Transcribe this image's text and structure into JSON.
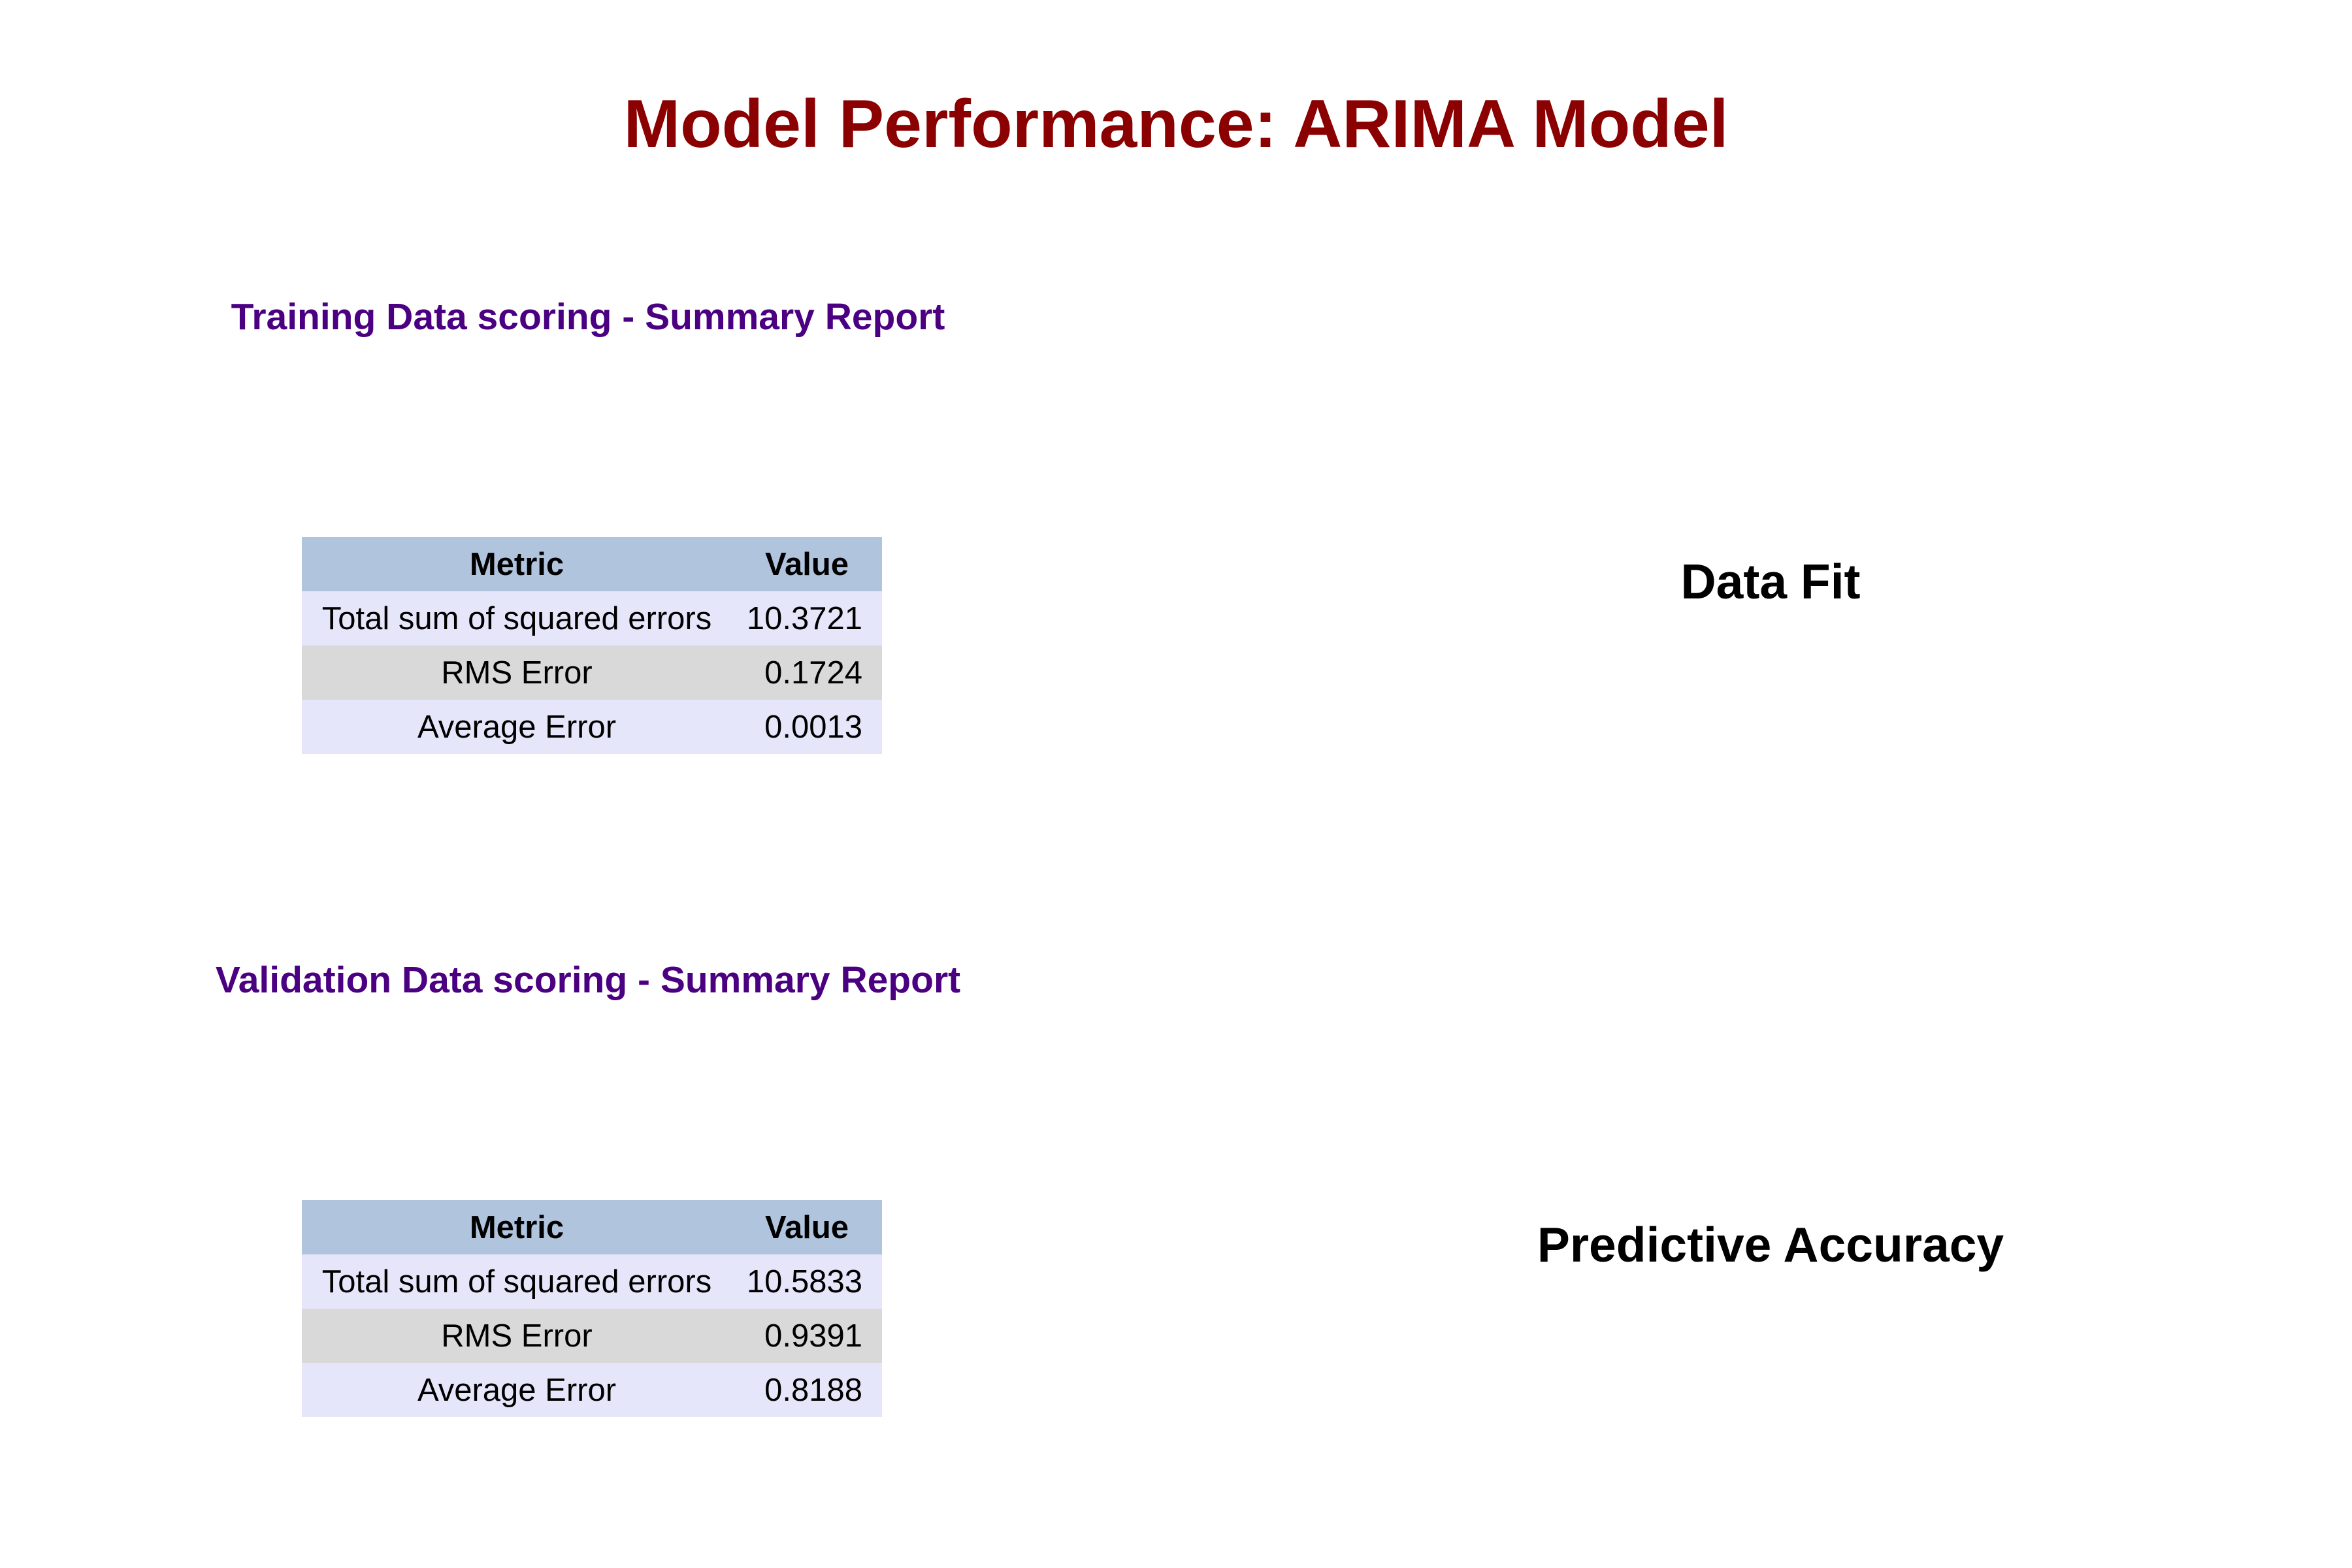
{
  "chart_data": {
    "type": "table",
    "title": "Model Performance: ARIMA Model",
    "columns": [
      "Metric",
      "Value"
    ],
    "tables": [
      {
        "title": "Training Data scoring - Summary Report",
        "label": "Data Fit",
        "rows": [
          {
            "metric": "Total sum of squared errors",
            "value": "10.3721"
          },
          {
            "metric": "RMS Error",
            "value": "0.1724"
          },
          {
            "metric": "Average Error",
            "value": "0.0013"
          }
        ]
      },
      {
        "title": "Validation Data scoring - Summary Report",
        "label": "Predictive Accuracy",
        "rows": [
          {
            "metric": "Total sum of squared errors",
            "value": "10.5833"
          },
          {
            "metric": "RMS Error",
            "value": "0.9391"
          },
          {
            "metric": "Average Error",
            "value": "0.8188"
          }
        ]
      }
    ]
  },
  "colors": {
    "title": "#8b0000",
    "section_title": "#4b0082",
    "header_bg": "#b0c4de",
    "row_light": "#e6e6fa",
    "row_gray": "#d9d9d9"
  }
}
